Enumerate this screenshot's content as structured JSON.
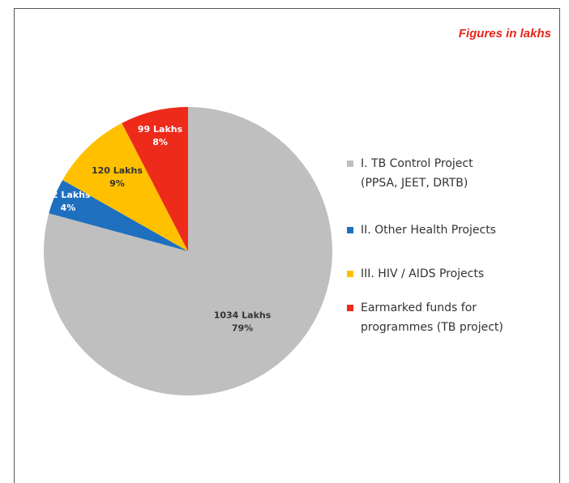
{
  "chart_data": {
    "type": "pie",
    "subtitle": "Figures in lakhs",
    "categories": [
      "I.  TB Control Project (PPSA, JEET, DRTB)",
      "II. Other Health Projects",
      "III. HIV / AIDS Projects",
      "Earmarked funds for programmes (TB project)"
    ],
    "values": [
      1034,
      52,
      120,
      99
    ],
    "value_labels": [
      "1034  Lakhs",
      "52 Lakhs",
      "120 Lakhs",
      "99 Lakhs"
    ],
    "percent_labels": [
      "79%",
      "4%",
      "9%",
      "8%"
    ],
    "colors": [
      "#bfbfbf",
      "#1f6fbf",
      "#ffc000",
      "#ee2a1b"
    ],
    "legend": "right"
  }
}
